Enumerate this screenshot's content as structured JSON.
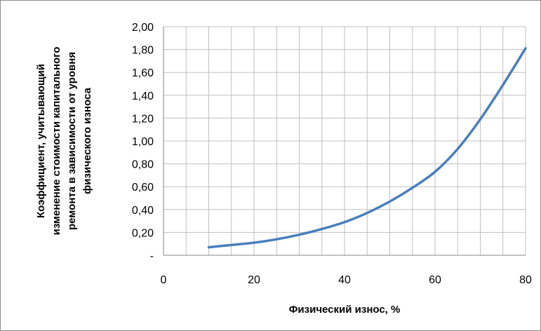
{
  "chart_data": {
    "type": "line",
    "xlabel": "Физический износ, %",
    "ylabel_lines": [
      "Коэффициент, учитывающий",
      "изменение стоимости капитального",
      "ремонта в зависимости от уровня",
      "физического износа"
    ],
    "xlim": [
      0,
      80
    ],
    "ylim": [
      0,
      2.0
    ],
    "x_ticks": [
      {
        "value": 0,
        "label": "0"
      },
      {
        "value": 20,
        "label": "20"
      },
      {
        "value": 40,
        "label": "40"
      },
      {
        "value": 60,
        "label": "60"
      },
      {
        "value": 80,
        "label": "80"
      }
    ],
    "y_ticks": [
      {
        "value": 0,
        "label": "-"
      },
      {
        "value": 0.2,
        "label": "0,20"
      },
      {
        "value": 0.4,
        "label": "0,40"
      },
      {
        "value": 0.6,
        "label": "0,60"
      },
      {
        "value": 0.8,
        "label": "0,80"
      },
      {
        "value": 1.0,
        "label": "1,00"
      },
      {
        "value": 1.2,
        "label": "1,20"
      },
      {
        "value": 1.4,
        "label": "1,40"
      },
      {
        "value": 1.6,
        "label": "1,60"
      },
      {
        "value": 1.8,
        "label": "1,80"
      },
      {
        "value": 2.0,
        "label": "2,00"
      }
    ],
    "x_minor_step": 5,
    "grid": true,
    "legend": false,
    "series": [
      {
        "color": "#4a7ebb",
        "x": [
          10,
          15,
          20,
          25,
          30,
          35,
          40,
          45,
          50,
          55,
          60,
          65,
          70,
          75,
          80
        ],
        "y": [
          0.07,
          0.09,
          0.11,
          0.14,
          0.18,
          0.23,
          0.29,
          0.37,
          0.47,
          0.59,
          0.73,
          0.93,
          1.19,
          1.49,
          1.81
        ]
      }
    ]
  }
}
